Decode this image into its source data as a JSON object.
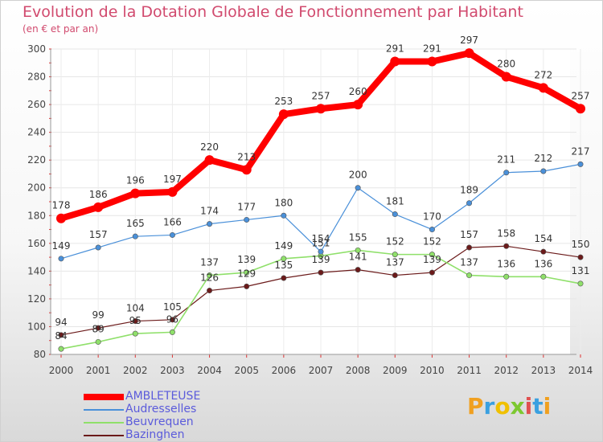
{
  "chart_data": {
    "type": "line",
    "title": "Evolution de la Dotation Globale de Fonctionnement par Habitant",
    "subtitle": "(en € et par an)",
    "x": [
      "2000",
      "2001",
      "2002",
      "2003",
      "2004",
      "2005",
      "2006",
      "2007",
      "2008",
      "2009",
      "2010",
      "2011",
      "2012",
      "2013",
      "2014"
    ],
    "ylim": [
      80,
      300
    ],
    "yticks": [
      80,
      100,
      120,
      140,
      160,
      180,
      200,
      220,
      240,
      260,
      280,
      300
    ],
    "grid": true,
    "legend_position": "bottom-left",
    "series": [
      {
        "name": "AMBLETEUSE",
        "color": "#ff0000",
        "values": [
          178,
          186,
          196,
          197,
          220,
          213,
          253,
          257,
          260,
          291,
          291,
          297,
          280,
          272,
          257
        ]
      },
      {
        "name": "Audresselles",
        "color": "#4a90d9",
        "values": [
          149,
          157,
          165,
          166,
          174,
          177,
          180,
          154,
          200,
          181,
          170,
          189,
          211,
          212,
          217
        ]
      },
      {
        "name": "Beuvrequen",
        "color": "#8fe06a",
        "values": [
          84,
          89,
          95,
          96,
          137,
          139,
          149,
          151,
          155,
          152,
          152,
          137,
          136,
          136,
          131
        ]
      },
      {
        "name": "Bazinghen",
        "color": "#6b1a1a",
        "values": [
          94,
          99,
          104,
          105,
          126,
          129,
          135,
          139,
          141,
          137,
          139,
          157,
          158,
          154,
          150
        ]
      }
    ]
  },
  "brand": {
    "letters": [
      "P",
      "r",
      "o",
      "x",
      "i",
      "t",
      "i"
    ],
    "colors": [
      "#f0a020",
      "#3aa0e0",
      "#f0c000",
      "#7cc830",
      "#e05050",
      "#3aa0e0",
      "#f0a020"
    ]
  }
}
